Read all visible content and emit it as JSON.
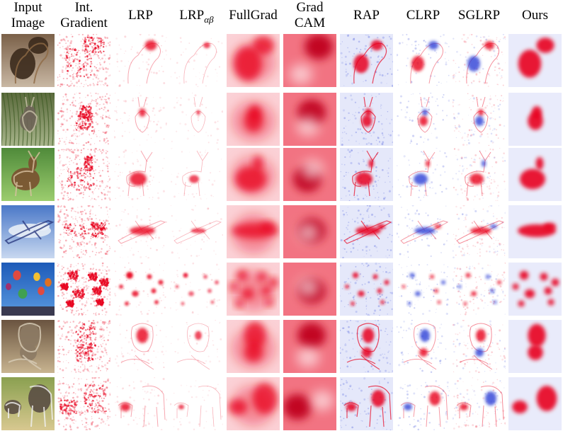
{
  "columns": [
    {
      "line1": "Input",
      "line2": "Image"
    },
    {
      "line1": "Int.",
      "line2": "Gradient"
    },
    {
      "line1": "LRP",
      "line2": ""
    },
    {
      "line1": "LRP",
      "line2": "",
      "subscript": "αβ"
    },
    {
      "line1": "FullGrad",
      "line2": ""
    },
    {
      "line1": "Grad",
      "line2": "CAM"
    },
    {
      "line1": "RAP",
      "line2": ""
    },
    {
      "line1": "CLRP",
      "line2": ""
    },
    {
      "line1": "SGLRP",
      "line2": ""
    },
    {
      "line1": "Ours",
      "line2": ""
    }
  ],
  "rows": [
    {
      "subject": "dog"
    },
    {
      "subject": "rabbit"
    },
    {
      "subject": "gazelle"
    },
    {
      "subject": "airplane"
    },
    {
      "subject": "balloons"
    },
    {
      "subject": "cat-and-dog"
    },
    {
      "subject": "elephant-and-zebra"
    }
  ],
  "colors": {
    "positive": "#e8001c",
    "negative": "#2a3fd6",
    "background": "#ffffff"
  }
}
